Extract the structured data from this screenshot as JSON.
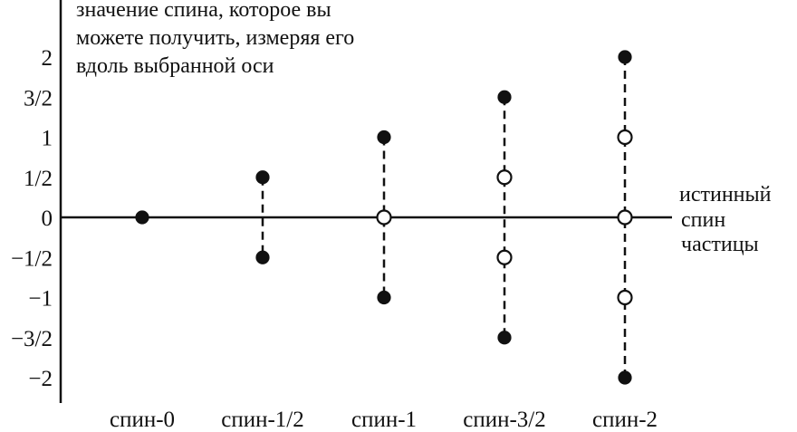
{
  "chart_data": {
    "type": "scatter",
    "ylabel_lines": [
      "значение спина, которое вы",
      "можете получить, измеряя его",
      "вдоль выбранной оси"
    ],
    "xlabel_lines": [
      "истинный",
      "спин",
      "частицы"
    ],
    "ylim": [
      -2,
      2
    ],
    "y_ticks": [
      {
        "value": 2,
        "label": "2"
      },
      {
        "value": 1.5,
        "label": "3/2"
      },
      {
        "value": 1,
        "label": "1"
      },
      {
        "value": 0.5,
        "label": "1/2"
      },
      {
        "value": 0,
        "label": "0"
      },
      {
        "value": -0.5,
        "label": "−1/2"
      },
      {
        "value": -1,
        "label": "−1"
      },
      {
        "value": -1.5,
        "label": "−3/2"
      },
      {
        "value": -2,
        "label": "−2"
      }
    ],
    "categories": [
      "спин-0",
      "спин-1/2",
      "спин-1",
      "спин-3/2",
      "спин-2"
    ],
    "points": [
      {
        "category": 0,
        "values": [
          0
        ],
        "filled": [
          true
        ]
      },
      {
        "category": 1,
        "values": [
          0.5,
          -0.5
        ],
        "filled": [
          true,
          true
        ]
      },
      {
        "category": 2,
        "values": [
          1,
          0,
          -1
        ],
        "filled": [
          true,
          false,
          true
        ]
      },
      {
        "category": 3,
        "values": [
          1.5,
          0.5,
          -0.5,
          -1.5
        ],
        "filled": [
          true,
          false,
          false,
          true
        ]
      },
      {
        "category": 4,
        "values": [
          2,
          1,
          0,
          -1,
          -2
        ],
        "filled": [
          true,
          false,
          false,
          false,
          true
        ]
      }
    ],
    "colors": {
      "ink": "#111111",
      "background": "#ffffff"
    }
  }
}
